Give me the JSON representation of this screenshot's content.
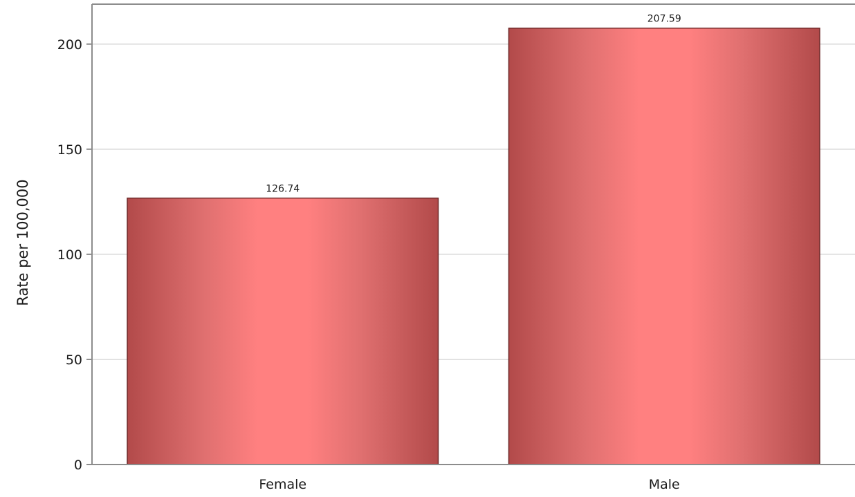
{
  "chart_data": {
    "type": "bar",
    "categories": [
      "Female",
      "Male"
    ],
    "values": [
      126.74,
      207.59
    ],
    "value_labels": [
      "126.74",
      "207.59"
    ],
    "title": "",
    "xlabel": "",
    "ylabel": "Rate per 100,000",
    "ylim": [
      0,
      219
    ],
    "yticks": [
      0,
      50,
      100,
      150,
      200
    ],
    "ytick_labels": [
      "0",
      "50",
      "100",
      "150",
      "200"
    ],
    "grid": true,
    "legend": "none",
    "colors": {
      "bar_edge": "#b24a4a",
      "bar_center": "#ff8080",
      "bar_outline": "#6e2a2a",
      "grid": "#e2e2e2",
      "axis": "#8c8c8c"
    }
  }
}
